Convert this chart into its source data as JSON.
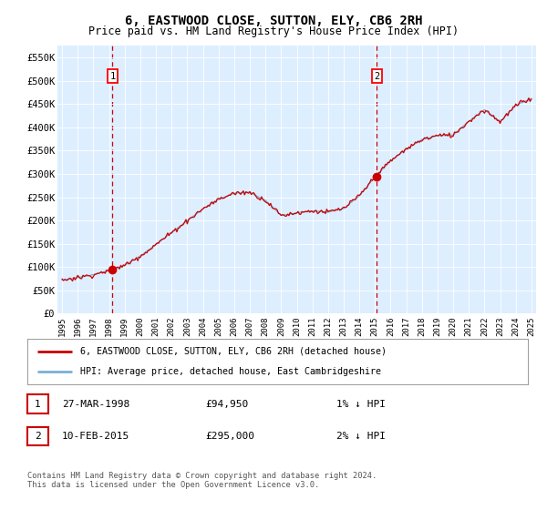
{
  "title": "6, EASTWOOD CLOSE, SUTTON, ELY, CB6 2RH",
  "subtitle": "Price paid vs. HM Land Registry's House Price Index (HPI)",
  "xlim_start": 1994.7,
  "xlim_end": 2025.3,
  "ylim_min": 0,
  "ylim_max": 575000,
  "yticks": [
    0,
    50000,
    100000,
    150000,
    200000,
    250000,
    300000,
    350000,
    400000,
    450000,
    500000,
    550000
  ],
  "ytick_labels": [
    "£0",
    "£50K",
    "£100K",
    "£150K",
    "£200K",
    "£250K",
    "£300K",
    "£350K",
    "£400K",
    "£450K",
    "£500K",
    "£550K"
  ],
  "sale1_x": 1998.22,
  "sale1_y": 94950,
  "sale1_label": "1",
  "sale1_date": "27-MAR-1998",
  "sale1_price": "£94,950",
  "sale1_hpi": "1% ↓ HPI",
  "sale2_x": 2015.12,
  "sale2_y": 295000,
  "sale2_label": "2",
  "sale2_date": "10-FEB-2015",
  "sale2_price": "£295,000",
  "sale2_hpi": "2% ↓ HPI",
  "line_color_red": "#cc0000",
  "line_color_blue": "#7bafd4",
  "background_color": "#ddeeff",
  "legend_line1": "6, EASTWOOD CLOSE, SUTTON, ELY, CB6 2RH (detached house)",
  "legend_line2": "HPI: Average price, detached house, East Cambridgeshire",
  "footer": "Contains HM Land Registry data © Crown copyright and database right 2024.\nThis data is licensed under the Open Government Licence v3.0.",
  "hpi_base_x": [
    1995,
    1996,
    1997,
    1998,
    1999,
    2000,
    2001,
    2002,
    2003,
    2004,
    2005,
    2006,
    2007,
    2008,
    2009,
    2010,
    2011,
    2012,
    2013,
    2014,
    2015,
    2016,
    2017,
    2018,
    2019,
    2020,
    2021,
    2022,
    2023,
    2024,
    2025
  ],
  "hpi_base_y": [
    72000,
    78000,
    84000,
    94000,
    105000,
    125000,
    150000,
    175000,
    200000,
    225000,
    245000,
    258000,
    262000,
    245000,
    212000,
    218000,
    222000,
    220000,
    228000,
    255000,
    295000,
    330000,
    355000,
    375000,
    385000,
    385000,
    415000,
    440000,
    415000,
    450000,
    465000
  ]
}
